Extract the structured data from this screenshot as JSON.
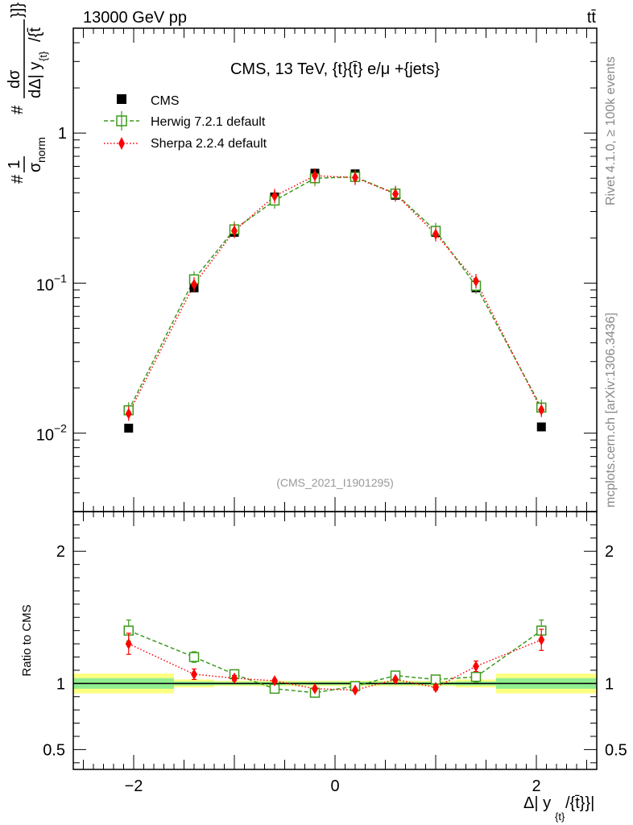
{
  "header": {
    "energy": "13000 GeV pp",
    "process": "tt̄"
  },
  "side_labels": {
    "rivet": "Rivet 4.1.0, ≥ 100k events",
    "mcplots": "mcplots.cern.ch [arXiv:1306.3436]"
  },
  "chart_data": [
    {
      "type": "scatter",
      "panel": "main",
      "title": "CMS, 13 TeV, {t}{t̄} e/μ +{jets}",
      "watermark": "(CMS_2021_I1901295)",
      "ylabel": "#1/σnorm # dσ / dΔ|y_{t}/{t̄}|",
      "ylabel_parts": {
        "prefix_hash": "#",
        "norm_numerator": "1",
        "norm_denominator": "σ",
        "norm_subscript": "norm",
        "middle_hash": "#",
        "deriv_numerator": "dσ",
        "deriv_denominator": "dΔ| y",
        "deriv_subscript": "{t}",
        "deriv_suffix": "/{t̄",
        "closing": "}]}"
      },
      "yscale": "log",
      "ylim": [
        0.003,
        5
      ],
      "xlim": [
        -2.6,
        2.6
      ],
      "y_ticks": [
        {
          "value": 0.01,
          "base": "10",
          "exp": "−2"
        },
        {
          "value": 0.1,
          "base": "10",
          "exp": "−1"
        },
        {
          "value": 1,
          "label": "1"
        }
      ],
      "legend": [
        {
          "label": "CMS",
          "style": "square-filled",
          "color": "#000000"
        },
        {
          "label": "Herwig 7.2.1 default",
          "style": "square-open-dashed",
          "color": "#3a9a1a"
        },
        {
          "label": "Sherpa 2.2.4 default",
          "style": "diamond-dotted",
          "color": "#ff0000"
        }
      ],
      "legend_position": "top-left",
      "x": [
        -2.05,
        -1.4,
        -1.0,
        -0.6,
        -0.2,
        0.2,
        0.6,
        1.0,
        1.4,
        2.05
      ],
      "x_bins": [
        [
          -2.6,
          -1.6
        ],
        [
          -1.6,
          -1.2
        ],
        [
          -1.2,
          -0.8
        ],
        [
          -0.8,
          -0.4
        ],
        [
          -0.4,
          0.0
        ],
        [
          0.0,
          0.4
        ],
        [
          0.4,
          0.8
        ],
        [
          0.8,
          1.2
        ],
        [
          1.2,
          1.6
        ],
        [
          1.6,
          2.6
        ]
      ],
      "series": [
        {
          "name": "CMS",
          "values": [
            0.0108,
            0.093,
            0.218,
            0.375,
            0.54,
            0.535,
            0.385,
            0.218,
            0.093,
            0.011
          ]
        },
        {
          "name": "Herwig 7.2.1 default",
          "values": [
            0.0142,
            0.106,
            0.228,
            0.355,
            0.5,
            0.51,
            0.395,
            0.223,
            0.096,
            0.0148
          ]
        },
        {
          "name": "Sherpa 2.2.4 default",
          "values": [
            0.0135,
            0.098,
            0.223,
            0.38,
            0.52,
            0.505,
            0.393,
            0.212,
            0.103,
            0.0143
          ]
        }
      ]
    },
    {
      "type": "scatter",
      "panel": "ratio",
      "ylabel": "Ratio to CMS",
      "xlabel": "Δ| y_{t}/{t̄}}|",
      "xlabel_parts": {
        "main": "Δ| y",
        "sub": "{t}",
        "suffix": "/{t̄}}|"
      },
      "ylim": [
        0.35,
        2.3
      ],
      "xlim": [
        -2.6,
        2.6
      ],
      "y_ticks": [
        {
          "value": 0.5,
          "label": "0.5"
        },
        {
          "value": 1,
          "label": "1"
        },
        {
          "value": 2,
          "label": "2"
        }
      ],
      "x_ticks": [
        {
          "value": -2,
          "label": "−2"
        },
        {
          "value": 0,
          "label": "0"
        },
        {
          "value": 2,
          "label": "2"
        }
      ],
      "x": [
        -2.05,
        -1.4,
        -1.0,
        -0.6,
        -0.2,
        0.2,
        0.6,
        1.0,
        1.4,
        2.05
      ],
      "uncertainty_bands": {
        "inner_color": "#90ee90",
        "outer_color": "#ffff80",
        "inner": [
          0.04,
          0.015,
          0.012,
          0.012,
          0.012,
          0.012,
          0.012,
          0.012,
          0.015,
          0.04
        ],
        "outer": [
          0.075,
          0.03,
          0.02,
          0.02,
          0.02,
          0.02,
          0.02,
          0.02,
          0.03,
          0.075
        ]
      },
      "series": [
        {
          "name": "Herwig 7.2.1 default",
          "values": [
            1.4,
            1.2,
            1.07,
            0.96,
            0.93,
            0.98,
            1.06,
            1.03,
            1.05,
            1.4
          ],
          "errors": [
            0.08,
            0.04,
            0.02,
            0.01,
            0.01,
            0.01,
            0.01,
            0.02,
            0.04,
            0.08
          ]
        },
        {
          "name": "Sherpa 2.2.4 default",
          "values": [
            1.3,
            1.07,
            1.04,
            1.02,
            0.96,
            0.95,
            1.03,
            0.97,
            1.13,
            1.33
          ],
          "errors": [
            0.08,
            0.04,
            0.02,
            0.01,
            0.01,
            0.01,
            0.01,
            0.02,
            0.04,
            0.08
          ]
        }
      ]
    }
  ]
}
